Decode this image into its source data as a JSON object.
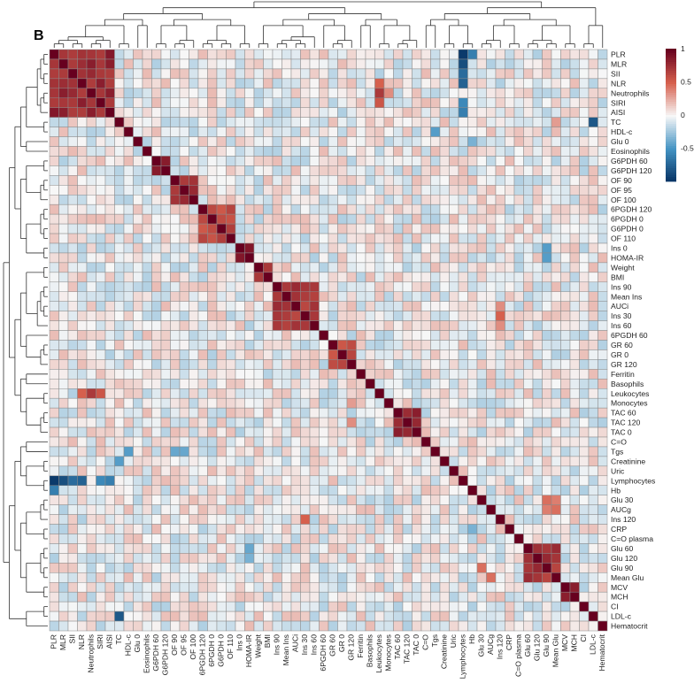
{
  "chart_data": {
    "type": "heatmap",
    "panel_label": "B",
    "row_labels": [
      "PLR",
      "MLR",
      "SII",
      "NLR",
      "Neutrophils",
      "SIRI",
      "AISI",
      "TC",
      "HDL-c",
      "Glu 0",
      "Eosinophils",
      "G6PDH 60",
      "G6PDH 120",
      "OF 90",
      "OF 95",
      "OF 100",
      "6PGDH 120",
      "6PGDH 0",
      "G6PDH 0",
      "OF 110",
      "Ins 0",
      "HOMA-IR",
      "Weight",
      "BMI",
      "Ins 90",
      "Mean Ins",
      "AUCi",
      "Ins 30",
      "Ins 60",
      "6PGDH 60",
      "GR 60",
      "GR 0",
      "GR 120",
      "Ferritin",
      "Basophils",
      "Leukocytes",
      "Monocytes",
      "TAC 60",
      "TAC 120",
      "TAC 0",
      "C=O",
      "Tgs",
      "Creatinine",
      "Uric",
      "Lymphocytes",
      "Hb",
      "Glu 30",
      "AUCg",
      "Ins 120",
      "CRP",
      "C=O plasma",
      "Glu 60",
      "Glu 120",
      "Glu 90",
      "Mean Glu",
      "MCV",
      "MCH",
      "CI",
      "LDL-c",
      "Hematocrit"
    ],
    "col_labels": [
      "PLR",
      "MLR",
      "SII",
      "NLR",
      "Neutrophils",
      "SIRI",
      "AISI",
      "TC",
      "HDL-c",
      "Glu 0",
      "Eosinophils",
      "G6PDH 60",
      "G6PDH 120",
      "OF 90",
      "OF 95",
      "OF 100",
      "6PGDH 120",
      "6PGDH 0",
      "G6PDH 0",
      "OF 110",
      "Ins 0",
      "HOMA-IR",
      "Weight",
      "BMI",
      "Ins 90",
      "Mean Ins",
      "AUCi",
      "Ins 30",
      "Ins 60",
      "6PGDH 60",
      "GR 60",
      "GR 0",
      "GR 120",
      "Ferritin",
      "Basophils",
      "Leukocytes",
      "Monocytes",
      "TAC 60",
      "TAC 120",
      "TAC 0",
      "C=O",
      "Tgs",
      "Creatinine",
      "Uric",
      "Lymphocytes",
      "Hb",
      "Glu 30",
      "AUCg",
      "Ins 120",
      "CRP",
      "C=O plasma",
      "Glu 60",
      "Glu 120",
      "Glu 90",
      "Mean Glu",
      "MCV",
      "MCH",
      "CI",
      "LDL-c",
      "Hematocrit"
    ],
    "color_scale": {
      "min": -1,
      "max": 1,
      "colors": [
        "#053061",
        "#4393c3",
        "#f7f7f7",
        "#d6604d",
        "#67001f"
      ]
    },
    "legend_ticks": [
      "1",
      "0.5",
      "0",
      "-0.5"
    ],
    "legend_tick_values": [
      1,
      0.5,
      0,
      -0.5
    ],
    "legend_position": "right",
    "blocks": [
      {
        "rows": [
          0,
          6
        ],
        "value": 0.78
      },
      {
        "rows": [
          11,
          12
        ],
        "value": 0.8
      },
      {
        "rows": [
          13,
          15
        ],
        "value": 0.78
      },
      {
        "rows": [
          16,
          19
        ],
        "value": 0.62
      },
      {
        "rows": [
          20,
          21
        ],
        "value": 0.85
      },
      {
        "rows": [
          22,
          23
        ],
        "value": 0.75
      },
      {
        "rows": [
          24,
          28
        ],
        "value": 0.7
      },
      {
        "rows": [
          30,
          32
        ],
        "value": 0.6
      },
      {
        "rows": [
          37,
          39
        ],
        "value": 0.78
      },
      {
        "rows": [
          51,
          54
        ],
        "value": 0.72
      },
      {
        "rows": [
          55,
          56
        ],
        "value": 0.75
      }
    ],
    "cells": [
      {
        "r": 0,
        "c": 44,
        "value": -0.95
      },
      {
        "r": 0,
        "c": 45,
        "value": -0.6
      },
      {
        "r": 1,
        "c": 44,
        "value": -0.85
      },
      {
        "r": 2,
        "c": 44,
        "value": -0.7
      },
      {
        "r": 3,
        "c": 44,
        "value": -0.75
      },
      {
        "r": 5,
        "c": 44,
        "value": -0.55
      },
      {
        "r": 6,
        "c": 44,
        "value": -0.6
      },
      {
        "r": 4,
        "c": 35,
        "value": 0.7
      },
      {
        "r": 4,
        "c": 36,
        "value": 0.35
      },
      {
        "r": 5,
        "c": 35,
        "value": 0.55
      },
      {
        "r": 3,
        "c": 35,
        "value": 0.5
      },
      {
        "r": 35,
        "c": 4,
        "value": 0.7
      },
      {
        "r": 35,
        "c": 5,
        "value": 0.55
      },
      {
        "r": 35,
        "c": 3,
        "value": 0.5
      },
      {
        "r": 7,
        "c": 58,
        "value": -0.8
      },
      {
        "r": 58,
        "c": 7,
        "value": -0.8
      },
      {
        "r": 7,
        "c": 54,
        "value": 0.3
      },
      {
        "r": 8,
        "c": 41,
        "value": -0.45
      },
      {
        "r": 41,
        "c": 8,
        "value": -0.45
      },
      {
        "r": 49,
        "c": 45,
        "value": -0.35
      },
      {
        "r": 27,
        "c": 48,
        "value": 0.5
      },
      {
        "r": 48,
        "c": 27,
        "value": 0.5
      },
      {
        "r": 26,
        "c": 48,
        "value": 0.35
      },
      {
        "r": 28,
        "c": 48,
        "value": 0.35
      },
      {
        "r": 46,
        "c": 53,
        "value": 0.45
      },
      {
        "r": 46,
        "c": 54,
        "value": 0.4
      },
      {
        "r": 47,
        "c": 53,
        "value": 0.4
      },
      {
        "r": 47,
        "c": 54,
        "value": 0.45
      },
      {
        "r": 53,
        "c": 46,
        "value": 0.45
      },
      {
        "r": 54,
        "c": 47,
        "value": 0.45
      },
      {
        "r": 20,
        "c": 53,
        "value": -0.45
      },
      {
        "r": 21,
        "c": 53,
        "value": -0.45
      },
      {
        "r": 44,
        "c": 0,
        "value": -0.95
      },
      {
        "r": 44,
        "c": 1,
        "value": -0.85
      },
      {
        "r": 44,
        "c": 2,
        "value": -0.7
      },
      {
        "r": 44,
        "c": 3,
        "value": -0.75
      },
      {
        "r": 44,
        "c": 5,
        "value": -0.55
      },
      {
        "r": 44,
        "c": 6,
        "value": -0.6
      },
      {
        "r": 45,
        "c": 0,
        "value": -0.6
      },
      {
        "r": 42,
        "c": 7,
        "value": -0.45
      },
      {
        "r": 41,
        "c": 13,
        "value": -0.4
      },
      {
        "r": 41,
        "c": 14,
        "value": -0.4
      },
      {
        "r": 38,
        "c": 32,
        "value": 0.35
      },
      {
        "r": 36,
        "c": 32,
        "value": 0.3
      },
      {
        "r": 9,
        "c": 45,
        "value": -0.35
      },
      {
        "r": 51,
        "c": 21,
        "value": -0.4
      },
      {
        "r": 52,
        "c": 21,
        "value": -0.35
      }
    ]
  }
}
